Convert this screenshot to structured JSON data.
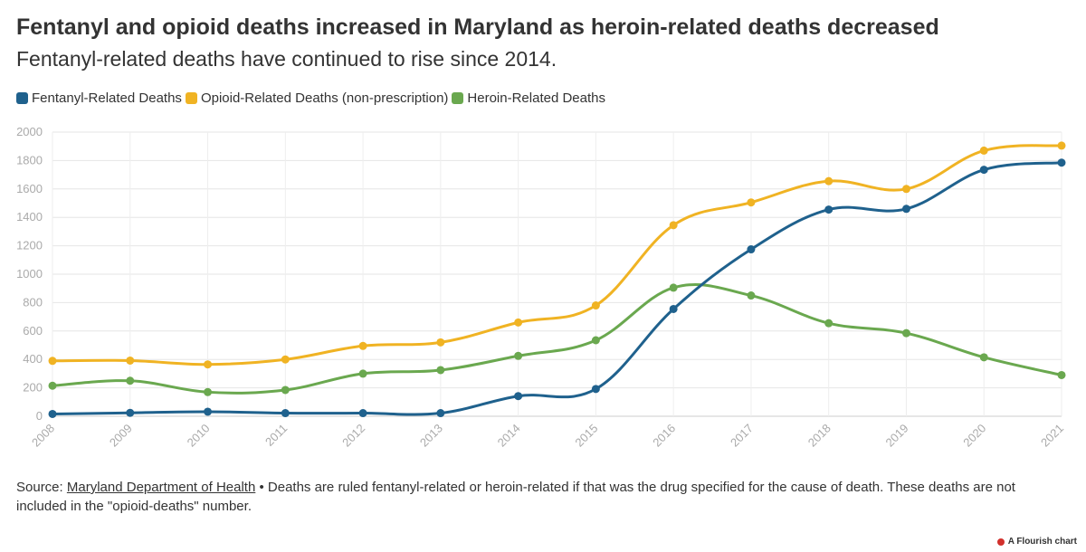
{
  "header": {
    "title": "Fentanyl and opioid deaths increased in Maryland as heroin-related deaths decreased",
    "subtitle": "Fentanyl-related deaths have continued to rise since 2014."
  },
  "footer": {
    "source_prefix": "Source: ",
    "source_link": "Maryland Department of Health",
    "source_note": " • Deaths are ruled fentanyl-related or heroin-related if that was the drug specified for the cause of death. These deaths are not included in the \"opioid-deaths\" number.",
    "credit": "A Flourish chart"
  },
  "chart_data": {
    "type": "line",
    "title": "Fentanyl and opioid deaths increased in Maryland as heroin-related deaths decreased",
    "subtitle": "Fentanyl-related deaths have continued to rise since 2014.",
    "x": [
      2008,
      2009,
      2010,
      2011,
      2012,
      2013,
      2014,
      2015,
      2016,
      2017,
      2018,
      2019,
      2020,
      2021
    ],
    "xlabel": "",
    "ylabel": "",
    "ylim": [
      0,
      2000
    ],
    "yticks": [
      0,
      200,
      400,
      600,
      800,
      1000,
      1200,
      1400,
      1600,
      1800,
      2000
    ],
    "grid": true,
    "legend_position": "top-left",
    "series": [
      {
        "name": "Fentanyl-Related Deaths",
        "color": "#1f618d",
        "values": [
          16,
          24,
          32,
          22,
          22,
          22,
          142,
          192,
          755,
          1175,
          1455,
          1460,
          1735,
          1785
        ]
      },
      {
        "name": "Opioid-Related Deaths (non-prescription)",
        "color": "#f0b323",
        "values": [
          390,
          392,
          365,
          400,
          495,
          520,
          660,
          780,
          1345,
          1505,
          1655,
          1600,
          1870,
          1905
        ]
      },
      {
        "name": "Heroin-Related Deaths",
        "color": "#6aa84f",
        "values": [
          215,
          250,
          170,
          185,
          300,
          325,
          425,
          535,
          905,
          850,
          655,
          585,
          415,
          290
        ]
      }
    ]
  }
}
